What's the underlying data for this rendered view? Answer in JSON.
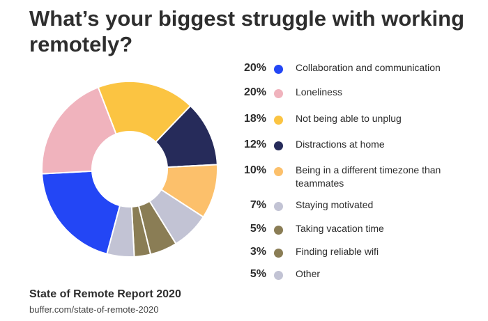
{
  "title": "What’s your biggest struggle with working remotely?",
  "source": {
    "title": "State of Remote Report 2020",
    "url": "buffer.com/state-of-remote-2020"
  },
  "chart_data": {
    "type": "pie",
    "donut": true,
    "legend_placement": "right",
    "categories": [
      "Collaboration and communication",
      "Loneliness",
      "Not being able to unplug",
      "Distractions at home",
      "Being in a different timezone than teammates",
      "Staying motivated",
      "Taking vacation time",
      "Finding reliable wifi",
      "Other"
    ],
    "values": [
      20,
      20,
      18,
      12,
      10,
      7,
      5,
      3,
      5
    ],
    "value_labels": [
      "20%",
      "20%",
      "18%",
      "12%",
      "10%",
      "7%",
      "5%",
      "3%",
      "5%"
    ],
    "colors": [
      "#2346f5",
      "#f0b3bd",
      "#fbc442",
      "#262b5a",
      "#fcc06b",
      "#c2c3d4",
      "#8a7d55",
      "#8a7d55",
      "#c2c3d4"
    ]
  }
}
